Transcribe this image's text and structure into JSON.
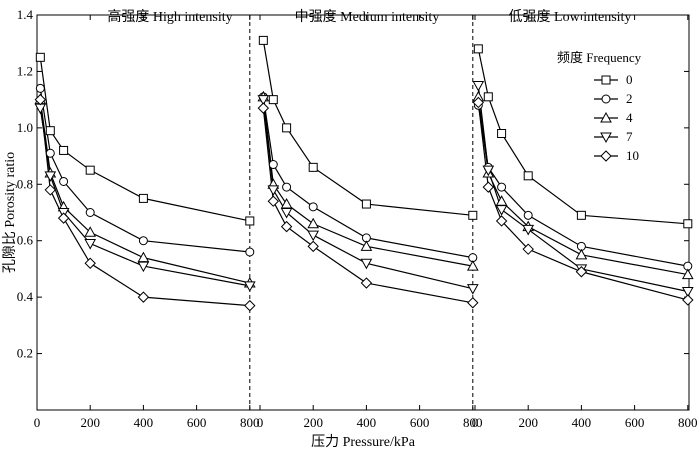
{
  "chart_data": {
    "type": "line",
    "ylabel": "孔隙比 Porosity ratio",
    "xlabel": "压力 Pressure/kPa",
    "ylim": [
      0.0,
      1.4
    ],
    "yticks": [
      "0.2",
      "0.4",
      "0.6",
      "0.8",
      "1.0",
      "1.2",
      "1.4"
    ],
    "ytick_values": [
      0.2,
      0.4,
      0.6,
      0.8,
      1.0,
      1.2,
      1.4
    ],
    "xlim_per_panel": [
      0,
      800
    ],
    "xtick_values": [
      0,
      200,
      400,
      600,
      800
    ],
    "xtick_labels": [
      "0",
      "200",
      "400",
      "600",
      "800"
    ],
    "legend": {
      "title": "频度 Frequency",
      "placement": "top-right",
      "entries": [
        {
          "label": "0",
          "marker": "square"
        },
        {
          "label": "2",
          "marker": "circle"
        },
        {
          "label": "4",
          "marker": "triangle-up"
        },
        {
          "label": "7",
          "marker": "triangle-down"
        },
        {
          "label": "10",
          "marker": "diamond"
        }
      ]
    },
    "panels": [
      {
        "title": "高强度 High intensity",
        "x": [
          12.5,
          50,
          100,
          200,
          400,
          800
        ],
        "series": [
          {
            "name": "0",
            "marker": "square",
            "values": [
              1.25,
              0.99,
              0.92,
              0.85,
              0.75,
              0.67
            ]
          },
          {
            "name": "2",
            "marker": "circle",
            "values": [
              1.14,
              0.91,
              0.81,
              0.7,
              0.6,
              0.56
            ]
          },
          {
            "name": "4",
            "marker": "triangle-up",
            "values": [
              1.1,
              0.84,
              0.72,
              0.63,
              0.54,
              0.45
            ]
          },
          {
            "name": "7",
            "marker": "triangle-down",
            "values": [
              1.07,
              0.83,
              0.7,
              0.59,
              0.51,
              0.44
            ]
          },
          {
            "name": "10",
            "marker": "diamond",
            "values": [
              1.1,
              0.78,
              0.68,
              0.52,
              0.4,
              0.37
            ]
          }
        ]
      },
      {
        "title": "中强度 Medium intensity",
        "x": [
          12.5,
          50,
          100,
          200,
          400,
          800
        ],
        "series": [
          {
            "name": "0",
            "marker": "square",
            "values": [
              1.31,
              1.1,
              1.0,
              0.86,
              0.73,
              0.69
            ]
          },
          {
            "name": "2",
            "marker": "circle",
            "values": [
              1.11,
              0.87,
              0.79,
              0.72,
              0.61,
              0.54
            ]
          },
          {
            "name": "4",
            "marker": "triangle-up",
            "values": [
              1.11,
              0.8,
              0.73,
              0.66,
              0.58,
              0.51
            ]
          },
          {
            "name": "7",
            "marker": "triangle-down",
            "values": [
              1.1,
              0.78,
              0.7,
              0.62,
              0.52,
              0.43
            ]
          },
          {
            "name": "10",
            "marker": "diamond",
            "values": [
              1.07,
              0.74,
              0.65,
              0.58,
              0.45,
              0.38
            ]
          }
        ]
      },
      {
        "title": "低强度 Low intensity",
        "x": [
          12.5,
          50,
          100,
          200,
          400,
          800
        ],
        "series": [
          {
            "name": "0",
            "marker": "square",
            "values": [
              1.28,
              1.11,
              0.98,
              0.83,
              0.69,
              0.66
            ]
          },
          {
            "name": "2",
            "marker": "circle",
            "values": [
              1.08,
              0.86,
              0.79,
              0.69,
              0.58,
              0.51
            ]
          },
          {
            "name": "4",
            "marker": "triangle-up",
            "values": [
              1.11,
              0.84,
              0.74,
              0.65,
              0.55,
              0.48
            ]
          },
          {
            "name": "7",
            "marker": "triangle-down",
            "values": [
              1.15,
              0.85,
              0.71,
              0.64,
              0.5,
              0.42
            ]
          },
          {
            "name": "10",
            "marker": "diamond",
            "values": [
              1.09,
              0.79,
              0.67,
              0.57,
              0.49,
              0.39
            ]
          }
        ]
      }
    ]
  }
}
